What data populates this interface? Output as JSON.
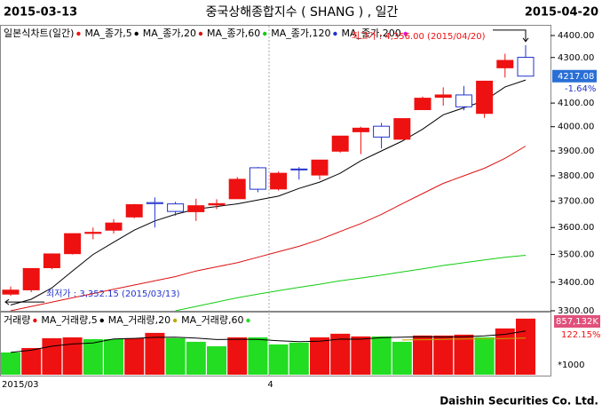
{
  "chart_data": {
    "type": "candlestick",
    "title": "중국상해종합지수 ( SHANG ) , 일간",
    "start_label": "2015-03-13",
    "end_label": "2015-04-20",
    "legend_title": {
      "name": "일본식차트(일간)",
      "color": "#ee1111"
    },
    "categories": [
      "2015/03",
      null,
      null,
      null,
      null,
      null,
      null,
      null,
      null,
      null,
      null,
      null,
      null,
      "4",
      null,
      null,
      null,
      null,
      null,
      null,
      null,
      null,
      null,
      null,
      null,
      null
    ],
    "open": [
      3358,
      3373,
      3452,
      3503,
      3578,
      3590,
      3640,
      3695,
      3690,
      3660,
      3686,
      3710,
      3832,
      3748,
      3827,
      3803,
      3899,
      3979,
      4002,
      3948,
      4072,
      4125,
      4135,
      4056,
      4254,
      4301
    ],
    "high": [
      3385,
      3449,
      3504,
      3577,
      3600,
      3632,
      3690,
      3715,
      3698,
      3710,
      3708,
      3795,
      3835,
      3817,
      3835,
      3864,
      3961,
      4000,
      4016,
      4035,
      4128,
      4168,
      4174,
      4197,
      4317,
      4356
    ],
    "low": [
      3352.15,
      3365,
      3446,
      3500,
      3556,
      3577,
      3635,
      3600,
      3645,
      3625,
      3670,
      3710,
      3735,
      3742,
      3785,
      3785,
      3893,
      3887,
      3910,
      3947,
      4072,
      4089,
      4069,
      4037,
      4211,
      4215
    ],
    "close": [
      3372,
      3449,
      3502,
      3577,
      3582,
      3617,
      3687,
      3691,
      3661,
      3683,
      3691,
      3786,
      3747,
      3810,
      3825,
      3863,
      3961,
      3994,
      3957,
      4034,
      4121,
      4135,
      4084,
      4195,
      4287,
      4217.08
    ],
    "up_color": "#ee1111",
    "down_color": "#2233cc",
    "log_scale": true,
    "ylim": [
      3300,
      4400
    ],
    "yticks": [
      {
        "value": 4400,
        "label": "4400.00"
      },
      {
        "value": 4300,
        "label": "4300.00"
      },
      {
        "value": 4100,
        "label": "4100.00"
      },
      {
        "value": 4000,
        "label": "4000.00"
      },
      {
        "value": 3900,
        "label": "3900.00"
      },
      {
        "value": 3800,
        "label": "3800.00"
      },
      {
        "value": 3700,
        "label": "3700.00"
      },
      {
        "value": 3600,
        "label": "3600.00"
      },
      {
        "value": 3500,
        "label": "3500.00"
      },
      {
        "value": 3400,
        "label": "3400.00"
      },
      {
        "value": 3300,
        "label": "3300.00"
      }
    ],
    "series": [
      {
        "name": "MA_종가,5",
        "color": "#000000",
        "values": [
          3320,
          3340,
          3380,
          3440,
          3500,
          3545,
          3590,
          3625,
          3650,
          3670,
          3680,
          3690,
          3705,
          3720,
          3750,
          3775,
          3810,
          3860,
          3900,
          3940,
          3990,
          4050,
          4080,
          4110,
          4170,
          4200
        ]
      },
      {
        "name": "MA_종가,20",
        "color": "#dd1111",
        "values": [
          3300,
          3315,
          3330,
          3345,
          3360,
          3375,
          3390,
          3405,
          3420,
          3440,
          3455,
          3470,
          3490,
          3510,
          3530,
          3555,
          3585,
          3615,
          3650,
          3690,
          3730,
          3770,
          3800,
          3830,
          3870,
          3920
        ]
      },
      {
        "name": "MA_종가,60",
        "color": "#11cc11",
        "values": [
          null,
          null,
          null,
          null,
          null,
          null,
          null,
          null,
          3300,
          3315,
          3330,
          3345,
          3358,
          3370,
          3382,
          3393,
          3405,
          3415,
          3425,
          3437,
          3448,
          3460,
          3470,
          3480,
          3490,
          3497
        ]
      }
    ],
    "legend_extra": [
      {
        "name": "MA_종가,120",
        "color": "#2233cc"
      },
      {
        "name": "MA_종가,200",
        "color": "#ee11ee"
      }
    ],
    "last_price": 4217.08,
    "last_change": "-1.64%",
    "high_label": "최고가 : 4,356.00 (2015/04/20)",
    "low_label": "최저가 : 3,352.15 (2015/03/13)",
    "volume": {
      "title": {
        "name": "거래량",
        "color": "#ee1111"
      },
      "values": [
        340000,
        408000,
        558000,
        571000,
        544000,
        544000,
        558000,
        639000,
        558000,
        503000,
        435000,
        571000,
        571000,
        463000,
        490000,
        571000,
        626000,
        585000,
        585000,
        503000,
        599000,
        599000,
        612000,
        571000,
        707000,
        857132
      ],
      "colors": [
        "#22dd22",
        "#ee1111",
        "#ee1111",
        "#ee1111",
        "#22dd22",
        "#22dd22",
        "#ee1111",
        "#ee1111",
        "#22dd22",
        "#22dd22",
        "#22dd22",
        "#ee1111",
        "#22dd22",
        "#22dd22",
        "#22dd22",
        "#ee1111",
        "#ee1111",
        "#ee1111",
        "#22dd22",
        "#22dd22",
        "#ee1111",
        "#ee1111",
        "#ee1111",
        "#22dd22",
        "#ee1111",
        "#ee1111"
      ],
      "ylim": [
        0,
        950000
      ],
      "series": [
        {
          "name": "MA_거래량,5",
          "color": "#000000",
          "values": [
            340000,
            374000,
            435000,
            469000,
            484000,
            545000,
            555000,
            571000,
            573000,
            560000,
            538000,
            541000,
            539000,
            520000,
            506000,
            513000,
            544000,
            543000,
            567000,
            574000,
            580000,
            575000,
            580000,
            594000,
            618000,
            669000
          ]
        },
        {
          "name": "MA_거래량,20",
          "color": "#bbaa00",
          "values": [
            null,
            null,
            null,
            null,
            null,
            null,
            null,
            null,
            null,
            null,
            null,
            null,
            null,
            null,
            null,
            null,
            null,
            null,
            null,
            530000,
            535000,
            540000,
            545000,
            548000,
            552000,
            560000
          ]
        }
      ],
      "legend_extra": [
        {
          "name": "MA_거래량,60",
          "color": "#22dd22"
        }
      ],
      "last_label": "857,132K",
      "ratio_label": "122.15%",
      "unit_label": "*1000"
    },
    "footer": "Daishin Securities Co. Ltd."
  }
}
